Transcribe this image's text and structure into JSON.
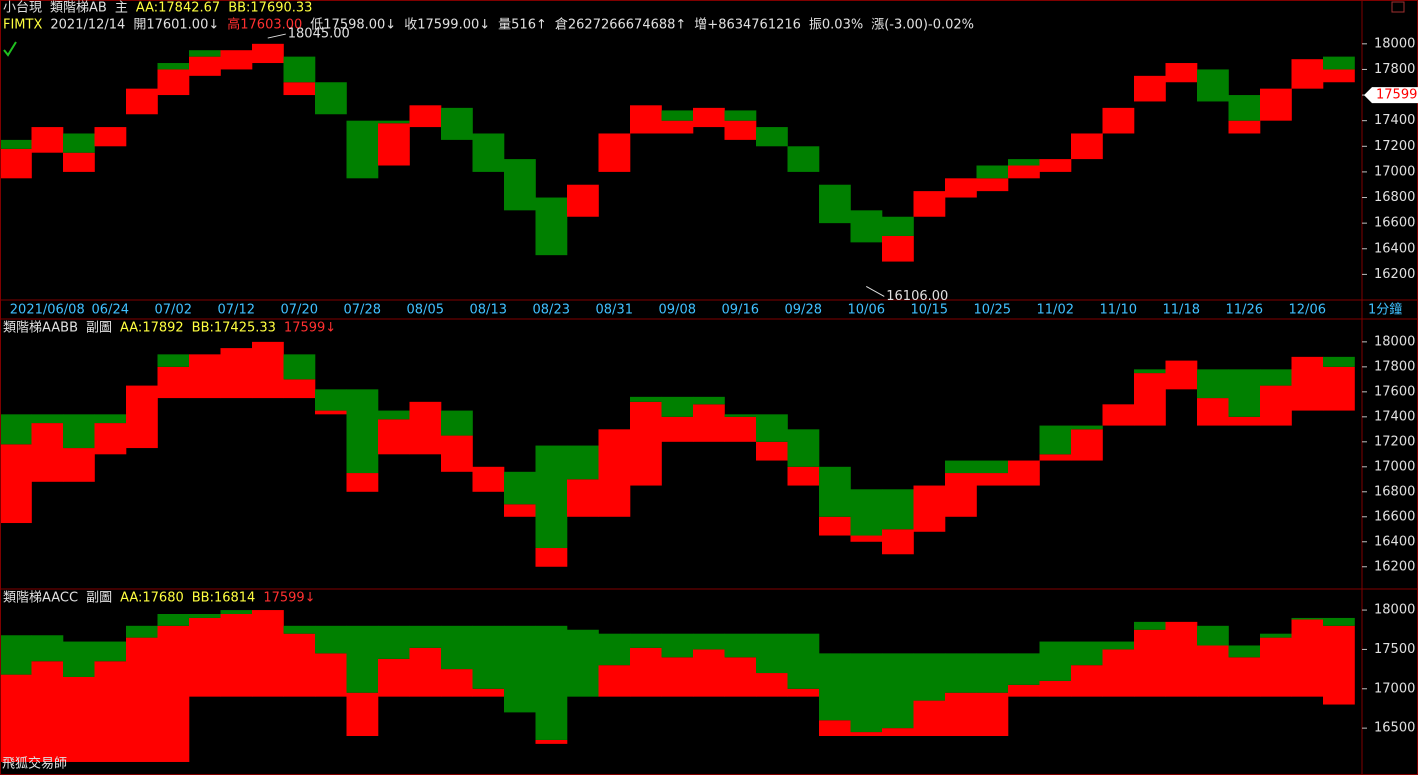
{
  "footer": "飛狐交易師",
  "chart_data": [
    {
      "type": "step-band",
      "title_items": [
        {
          "text": "小台現",
          "color": "#e0e0e0"
        },
        {
          "text": "類階梯AB",
          "color": "#e0e0e0"
        },
        {
          "text": "主",
          "color": "#e0e0e0"
        },
        {
          "text": "AA:17842.67",
          "color": "#ffff40"
        },
        {
          "text": "BB:17690.33",
          "color": "#ffff40"
        }
      ],
      "info_items": [
        {
          "text": "FIMTX",
          "color": "#ffff40"
        },
        {
          "text": "2021/12/14",
          "color": "#e0e0e0"
        },
        {
          "text": "開17601.00↓",
          "color": "#e0e0e0"
        },
        {
          "text": "高17603.00",
          "color": "#ff3030"
        },
        {
          "text": "低17598.00↓",
          "color": "#e0e0e0"
        },
        {
          "text": "收17599.00↓",
          "color": "#e0e0e0"
        },
        {
          "text": "量516↑",
          "color": "#e0e0e0"
        },
        {
          "text": "倉2627266674688↑",
          "color": "#e0e0e0"
        },
        {
          "text": "增+8634761216",
          "color": "#e0e0e0"
        },
        {
          "text": "振0.03%",
          "color": "#e0e0e0"
        },
        {
          "text": "漲(-3.00)-0.02%",
          "color": "#e0e0e0"
        }
      ],
      "timeframe": "1分鐘",
      "categories": [
        null,
        "2021/06/08",
        null,
        "06/24",
        null,
        "07/02",
        null,
        "07/12",
        null,
        "07/20",
        null,
        "07/28",
        null,
        "08/05",
        null,
        "08/13",
        null,
        "08/23",
        null,
        "08/31",
        null,
        "09/08",
        null,
        "09/16",
        null,
        "09/28",
        null,
        "10/06",
        null,
        "10/15",
        null,
        "10/25",
        null,
        "11/02",
        null,
        "11/10",
        null,
        "11/18",
        null,
        "11/26",
        null,
        "12/06",
        null
      ],
      "values": [
        17180,
        17350,
        17150,
        17350,
        17650,
        17800,
        17900,
        17950,
        18000,
        17700,
        17450,
        16950,
        17380,
        17520,
        17250,
        17000,
        16700,
        16350,
        16900,
        17300,
        17520,
        17400,
        17500,
        17400,
        17200,
        17000,
        16600,
        16450,
        16500,
        16850,
        16950,
        16950,
        17050,
        17100,
        17300,
        17500,
        17750,
        17850,
        17550,
        17400,
        17650,
        17880,
        17800
      ],
      "aa": [
        17250,
        17350,
        17300,
        17350,
        17650,
        17850,
        17950,
        17950,
        18000,
        17900,
        17700,
        17400,
        17400,
        17520,
        17500,
        17300,
        17100,
        16800,
        16900,
        17300,
        17520,
        17480,
        17500,
        17480,
        17350,
        17200,
        16900,
        16700,
        16650,
        16850,
        16950,
        17050,
        17100,
        17100,
        17300,
        17500,
        17750,
        17850,
        17800,
        17600,
        17650,
        17880,
        17900
      ],
      "bb": [
        16950,
        17150,
        17000,
        17200,
        17450,
        17600,
        17750,
        17800,
        17850,
        17600,
        17450,
        16950,
        17050,
        17350,
        17250,
        17000,
        16700,
        16350,
        16650,
        17000,
        17300,
        17300,
        17350,
        17250,
        17200,
        17000,
        16600,
        16450,
        16300,
        16650,
        16800,
        16850,
        16950,
        17000,
        17100,
        17300,
        17550,
        17700,
        17550,
        17300,
        17400,
        17650,
        17700
      ],
      "up_color": "#ff0000",
      "down_color": "#008000",
      "ylim": [
        16000,
        18225
      ],
      "yticks": [
        16200,
        16400,
        16600,
        16800,
        17000,
        17200,
        17400,
        17600,
        17800,
        18000
      ],
      "annotations": [
        {
          "value": 18045,
          "label": "18045.00",
          "at": 8
        },
        {
          "value": 16106,
          "label": "16106.00",
          "at": 27
        }
      ],
      "last": 17599
    },
    {
      "type": "step-band",
      "title_items": [
        {
          "text": "類階梯AABB",
          "color": "#e0e0e0"
        },
        {
          "text": "副圖",
          "color": "#e0e0e0"
        },
        {
          "text": "AA:17892",
          "color": "#ffff40"
        },
        {
          "text": "BB:17425.33",
          "color": "#ffff40"
        },
        {
          "text": "17599↓",
          "color": "#ff3030"
        }
      ],
      "values": [
        17180,
        17350,
        17150,
        17350,
        17650,
        17800,
        17900,
        17950,
        18000,
        17700,
        17450,
        16950,
        17380,
        17520,
        17250,
        17000,
        16700,
        16350,
        16900,
        17300,
        17520,
        17400,
        17500,
        17400,
        17200,
        17000,
        16600,
        16450,
        16500,
        16850,
        16950,
        16950,
        17050,
        17100,
        17300,
        17500,
        17750,
        17850,
        17550,
        17400,
        17650,
        17880,
        17800
      ],
      "aa": [
        17420,
        17420,
        17420,
        17420,
        17550,
        17900,
        17900,
        17900,
        17900,
        17900,
        17620,
        17620,
        17450,
        17450,
        17450,
        16960,
        16960,
        17170,
        17170,
        17170,
        17560,
        17560,
        17560,
        17420,
        17420,
        17300,
        17000,
        16820,
        16820,
        16820,
        17050,
        17050,
        17050,
        17330,
        17330,
        17330,
        17780,
        17850,
        17780,
        17780,
        17780,
        17880,
        17880
      ],
      "bb": [
        16550,
        16880,
        16880,
        17100,
        17150,
        17550,
        17550,
        17550,
        17550,
        17550,
        17420,
        16800,
        17100,
        17100,
        16960,
        16800,
        16600,
        16200,
        16600,
        16600,
        16850,
        17200,
        17200,
        17200,
        17050,
        16850,
        16450,
        16400,
        16300,
        16480,
        16600,
        16850,
        16850,
        17050,
        17050,
        17330,
        17330,
        17620,
        17330,
        17330,
        17330,
        17450,
        17450
      ],
      "up_color": "#ff0000",
      "down_color": "#008000",
      "ylim": [
        16030,
        18175
      ],
      "yticks": [
        16200,
        16400,
        16600,
        16800,
        17000,
        17200,
        17400,
        17600,
        17800,
        18000
      ]
    },
    {
      "type": "step-band",
      "title_items": [
        {
          "text": "類階梯AACC",
          "color": "#e0e0e0"
        },
        {
          "text": "副圖",
          "color": "#e0e0e0"
        },
        {
          "text": "AA:17680",
          "color": "#ffff40"
        },
        {
          "text": "BB:16814",
          "color": "#ffff40"
        },
        {
          "text": "17599↓",
          "color": "#ff3030"
        }
      ],
      "values": [
        17180,
        17350,
        17150,
        17350,
        17650,
        17800,
        17900,
        17950,
        18000,
        17700,
        17450,
        16950,
        17380,
        17520,
        17250,
        17000,
        16700,
        16350,
        16900,
        17300,
        17520,
        17400,
        17500,
        17400,
        17200,
        17000,
        16600,
        16450,
        16500,
        16850,
        16950,
        16950,
        17050,
        17100,
        17300,
        17500,
        17750,
        17850,
        17550,
        17400,
        17650,
        17880,
        17800
      ],
      "aa": [
        17680,
        17680,
        17600,
        17600,
        17800,
        17950,
        17950,
        18000,
        18000,
        17800,
        17800,
        17800,
        17800,
        17800,
        17800,
        17800,
        17800,
        17800,
        17750,
        17700,
        17700,
        17700,
        17700,
        17700,
        17700,
        17700,
        17450,
        17450,
        17450,
        17450,
        17450,
        17450,
        17450,
        17600,
        17600,
        17600,
        17850,
        17850,
        17800,
        17550,
        17700,
        17900,
        17900
      ],
      "bb": [
        16070,
        16070,
        16070,
        16070,
        16070,
        16070,
        16900,
        16900,
        16900,
        16900,
        16900,
        16400,
        16900,
        16900,
        16900,
        16900,
        16900,
        16300,
        16900,
        16900,
        16900,
        16900,
        16900,
        16900,
        16900,
        16900,
        16400,
        16400,
        16400,
        16400,
        16400,
        16400,
        16900,
        16900,
        16900,
        16900,
        16900,
        16900,
        16900,
        16900,
        16900,
        16900,
        16800
      ],
      "up_color": "#ff0000",
      "down_color": "#008000",
      "ylim": [
        15930,
        18255
      ],
      "yticks": [
        16500,
        17000,
        17500,
        18000
      ]
    }
  ]
}
